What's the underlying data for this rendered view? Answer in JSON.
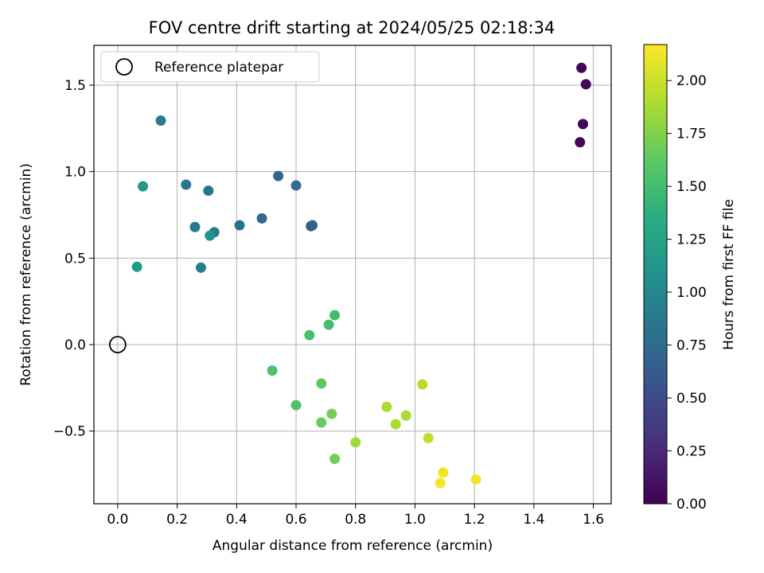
{
  "chart_data": {
    "type": "scatter",
    "title": "FOV centre drift starting at 2024/05/25 02:18:34",
    "xlabel": "Angular distance from reference (arcmin)",
    "ylabel": "Rotation from reference (arcmin)",
    "colorbar_label": "Hours from first FF file",
    "colormap": "viridis",
    "xlim": [
      -0.08,
      1.66
    ],
    "ylim": [
      -0.92,
      1.73
    ],
    "clim": [
      0.0,
      2.17
    ],
    "x_ticks": [
      0.0,
      0.2,
      0.4,
      0.6,
      0.8,
      1.0,
      1.2,
      1.4,
      1.6
    ],
    "x_tick_labels": [
      "0.0",
      "0.2",
      "0.4",
      "0.6",
      "0.8",
      "1.0",
      "1.2",
      "1.4",
      "1.6"
    ],
    "y_ticks": [
      -0.5,
      0.0,
      0.5,
      1.0,
      1.5
    ],
    "y_tick_labels": [
      "−0.5",
      "0.0",
      "0.5",
      "1.0",
      "1.5"
    ],
    "colorbar_ticks": [
      0.0,
      0.25,
      0.5,
      0.75,
      1.0,
      1.25,
      1.5,
      1.75,
      2.0
    ],
    "colorbar_tick_labels": [
      "0.00",
      "0.25",
      "0.50",
      "0.75",
      "1.00",
      "1.25",
      "1.50",
      "1.75",
      "2.00"
    ],
    "grid": true,
    "legend": {
      "position": "top-left",
      "entries": [
        "Reference platepar"
      ]
    },
    "reference_point": {
      "name": "Reference platepar",
      "x": 0.0,
      "y": 0.0
    },
    "points": [
      {
        "x": 1.56,
        "y": 1.6,
        "hours": 0.02
      },
      {
        "x": 1.575,
        "y": 1.505,
        "hours": 0.03
      },
      {
        "x": 1.565,
        "y": 1.275,
        "hours": 0.04
      },
      {
        "x": 1.555,
        "y": 1.17,
        "hours": 0.05
      },
      {
        "x": 0.65,
        "y": 0.685,
        "hours": 0.65
      },
      {
        "x": 0.655,
        "y": 0.69,
        "hours": 0.67
      },
      {
        "x": 0.54,
        "y": 0.975,
        "hours": 0.7
      },
      {
        "x": 0.485,
        "y": 0.73,
        "hours": 0.75
      },
      {
        "x": 0.6,
        "y": 0.92,
        "hours": 0.77
      },
      {
        "x": 0.41,
        "y": 0.69,
        "hours": 0.8
      },
      {
        "x": 0.305,
        "y": 0.89,
        "hours": 0.82
      },
      {
        "x": 0.23,
        "y": 0.925,
        "hours": 0.85
      },
      {
        "x": 0.325,
        "y": 0.65,
        "hours": 0.88
      },
      {
        "x": 0.26,
        "y": 0.68,
        "hours": 0.87
      },
      {
        "x": 0.145,
        "y": 1.295,
        "hours": 0.9
      },
      {
        "x": 0.28,
        "y": 0.445,
        "hours": 0.93
      },
      {
        "x": 0.31,
        "y": 0.63,
        "hours": 1.12
      },
      {
        "x": 0.085,
        "y": 0.915,
        "hours": 1.15
      },
      {
        "x": 0.065,
        "y": 0.45,
        "hours": 1.17
      },
      {
        "x": 0.73,
        "y": 0.17,
        "hours": 1.5
      },
      {
        "x": 0.71,
        "y": 0.115,
        "hours": 1.5
      },
      {
        "x": 0.645,
        "y": 0.055,
        "hours": 1.52
      },
      {
        "x": 0.52,
        "y": -0.15,
        "hours": 1.55
      },
      {
        "x": 0.6,
        "y": -0.35,
        "hours": 1.55
      },
      {
        "x": 0.685,
        "y": -0.225,
        "hours": 1.62
      },
      {
        "x": 0.685,
        "y": -0.45,
        "hours": 1.65
      },
      {
        "x": 0.72,
        "y": -0.4,
        "hours": 1.7
      },
      {
        "x": 0.73,
        "y": -0.66,
        "hours": 1.7
      },
      {
        "x": 0.8,
        "y": -0.565,
        "hours": 1.85
      },
      {
        "x": 0.905,
        "y": -0.36,
        "hours": 1.88
      },
      {
        "x": 0.935,
        "y": -0.46,
        "hours": 1.9
      },
      {
        "x": 0.97,
        "y": -0.41,
        "hours": 1.9
      },
      {
        "x": 1.025,
        "y": -0.23,
        "hours": 1.93
      },
      {
        "x": 1.045,
        "y": -0.54,
        "hours": 1.97
      },
      {
        "x": 1.095,
        "y": -0.74,
        "hours": 2.12
      },
      {
        "x": 1.085,
        "y": -0.8,
        "hours": 2.15
      },
      {
        "x": 1.205,
        "y": -0.78,
        "hours": 2.13
      }
    ]
  }
}
